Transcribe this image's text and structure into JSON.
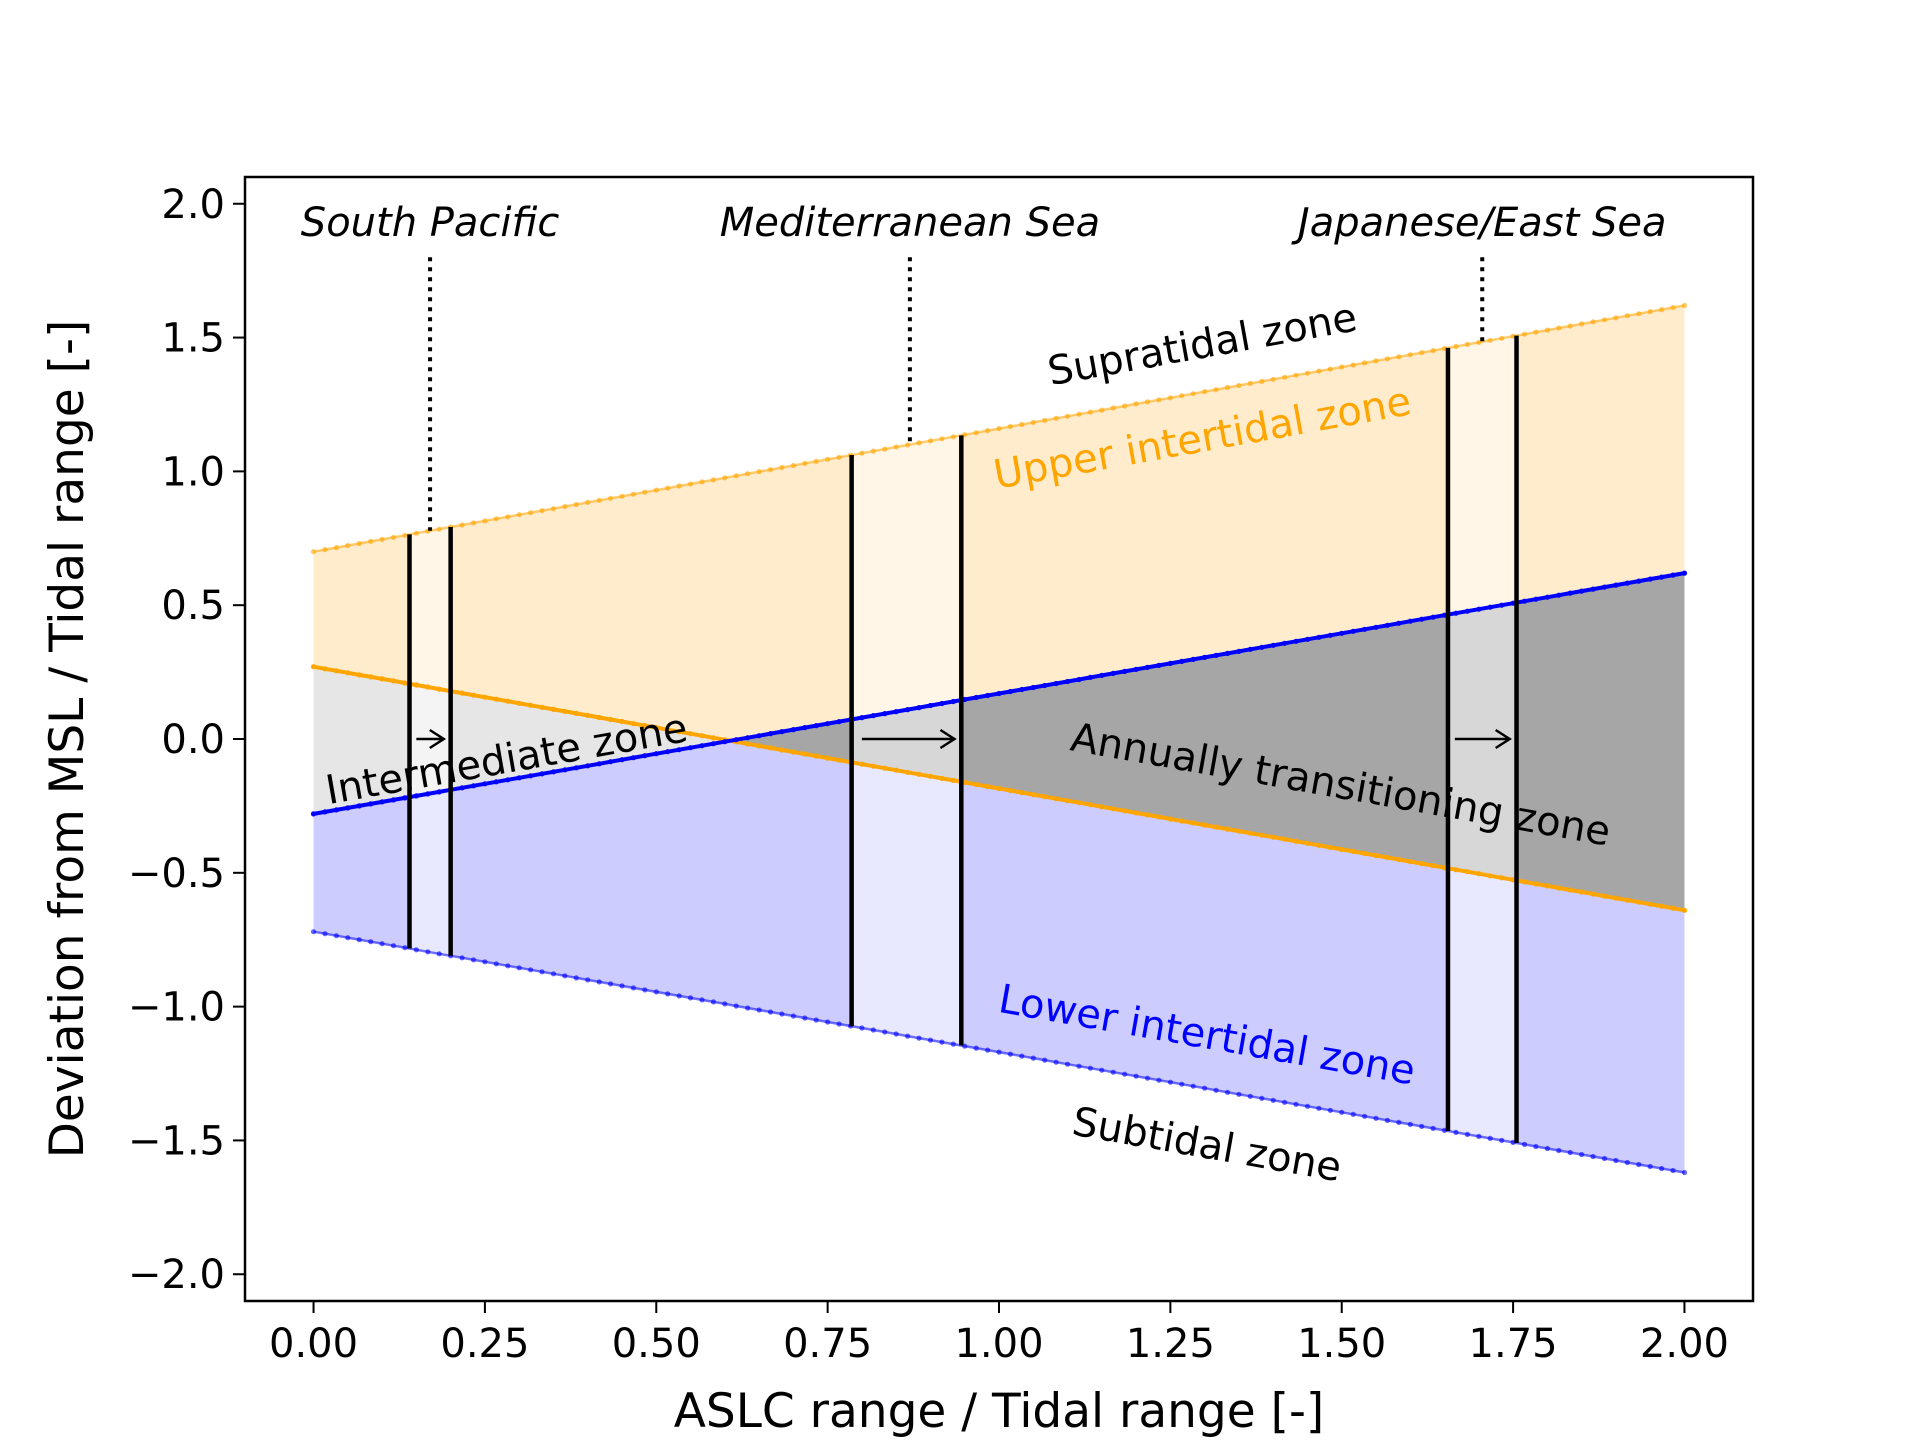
{
  "chart_data": {
    "type": "line",
    "title": "",
    "xlabel": "ASLC range / Tidal range [-]",
    "ylabel": "Deviation from MSL / Tidal range [-]",
    "xlim": [
      -0.1,
      2.1
    ],
    "ylim": [
      -2.1,
      2.1
    ],
    "x_ticks": [
      0.0,
      0.25,
      0.5,
      0.75,
      1.0,
      1.25,
      1.5,
      1.75,
      2.0
    ],
    "x_tick_labels": [
      "0.00",
      "0.25",
      "0.50",
      "0.75",
      "1.00",
      "1.25",
      "1.50",
      "1.75",
      "2.00"
    ],
    "y_ticks": [
      2.0,
      1.5,
      1.0,
      0.5,
      0.0,
      -0.5,
      -1.0,
      -1.5,
      -2.0
    ],
    "y_tick_labels": [
      "2.0",
      "1.5",
      "1.0",
      "0.5",
      "0.0",
      "−0.5",
      "−1.0",
      "−1.5",
      "−2.0"
    ],
    "grid": false,
    "series": [
      {
        "key": "upper",
        "x": [
          0.0,
          2.0
        ],
        "y": [
          0.7,
          1.62
        ],
        "color": "#ffa500"
      },
      {
        "key": "mid_orange",
        "x": [
          0.0,
          2.0
        ],
        "y": [
          0.27,
          -0.64
        ],
        "color": "#ffa500"
      },
      {
        "key": "mid_blue",
        "x": [
          0.0,
          2.0
        ],
        "y": [
          -0.28,
          0.62
        ],
        "color": "#0000ff"
      },
      {
        "key": "lower",
        "x": [
          0.0,
          2.0
        ],
        "y": [
          -0.72,
          -1.62
        ],
        "color": "#0000ff"
      }
    ],
    "regions": [
      {
        "name": "South Pacific",
        "x_start": 0.14,
        "x_end": 0.2,
        "marker_x": 0.17
      },
      {
        "name": "Mediterranean Sea",
        "x_start": 0.785,
        "x_end": 0.945,
        "marker_x": 0.87
      },
      {
        "name": "Japanese/East Sea",
        "x_start": 1.655,
        "x_end": 1.755,
        "marker_x": 1.705
      }
    ],
    "zone_labels": {
      "supratidal": "Supratidal zone",
      "upper_intertidal": "Upper intertidal zone",
      "intermediate": "Intermediate zone",
      "annually_transitioning": "Annually transitioning zone",
      "lower_intertidal": "Lower intertidal zone",
      "subtidal": "Subtidal zone"
    },
    "colors": {
      "orange": "#ffa500",
      "blue": "#0000ff",
      "upper_fill": "#ffeccc",
      "lower_fill": "#ccccff",
      "intermediate_fill": "#e6e6e6",
      "transition_fill": "#a6a6a6",
      "region_overlay": "#ffffff"
    }
  }
}
